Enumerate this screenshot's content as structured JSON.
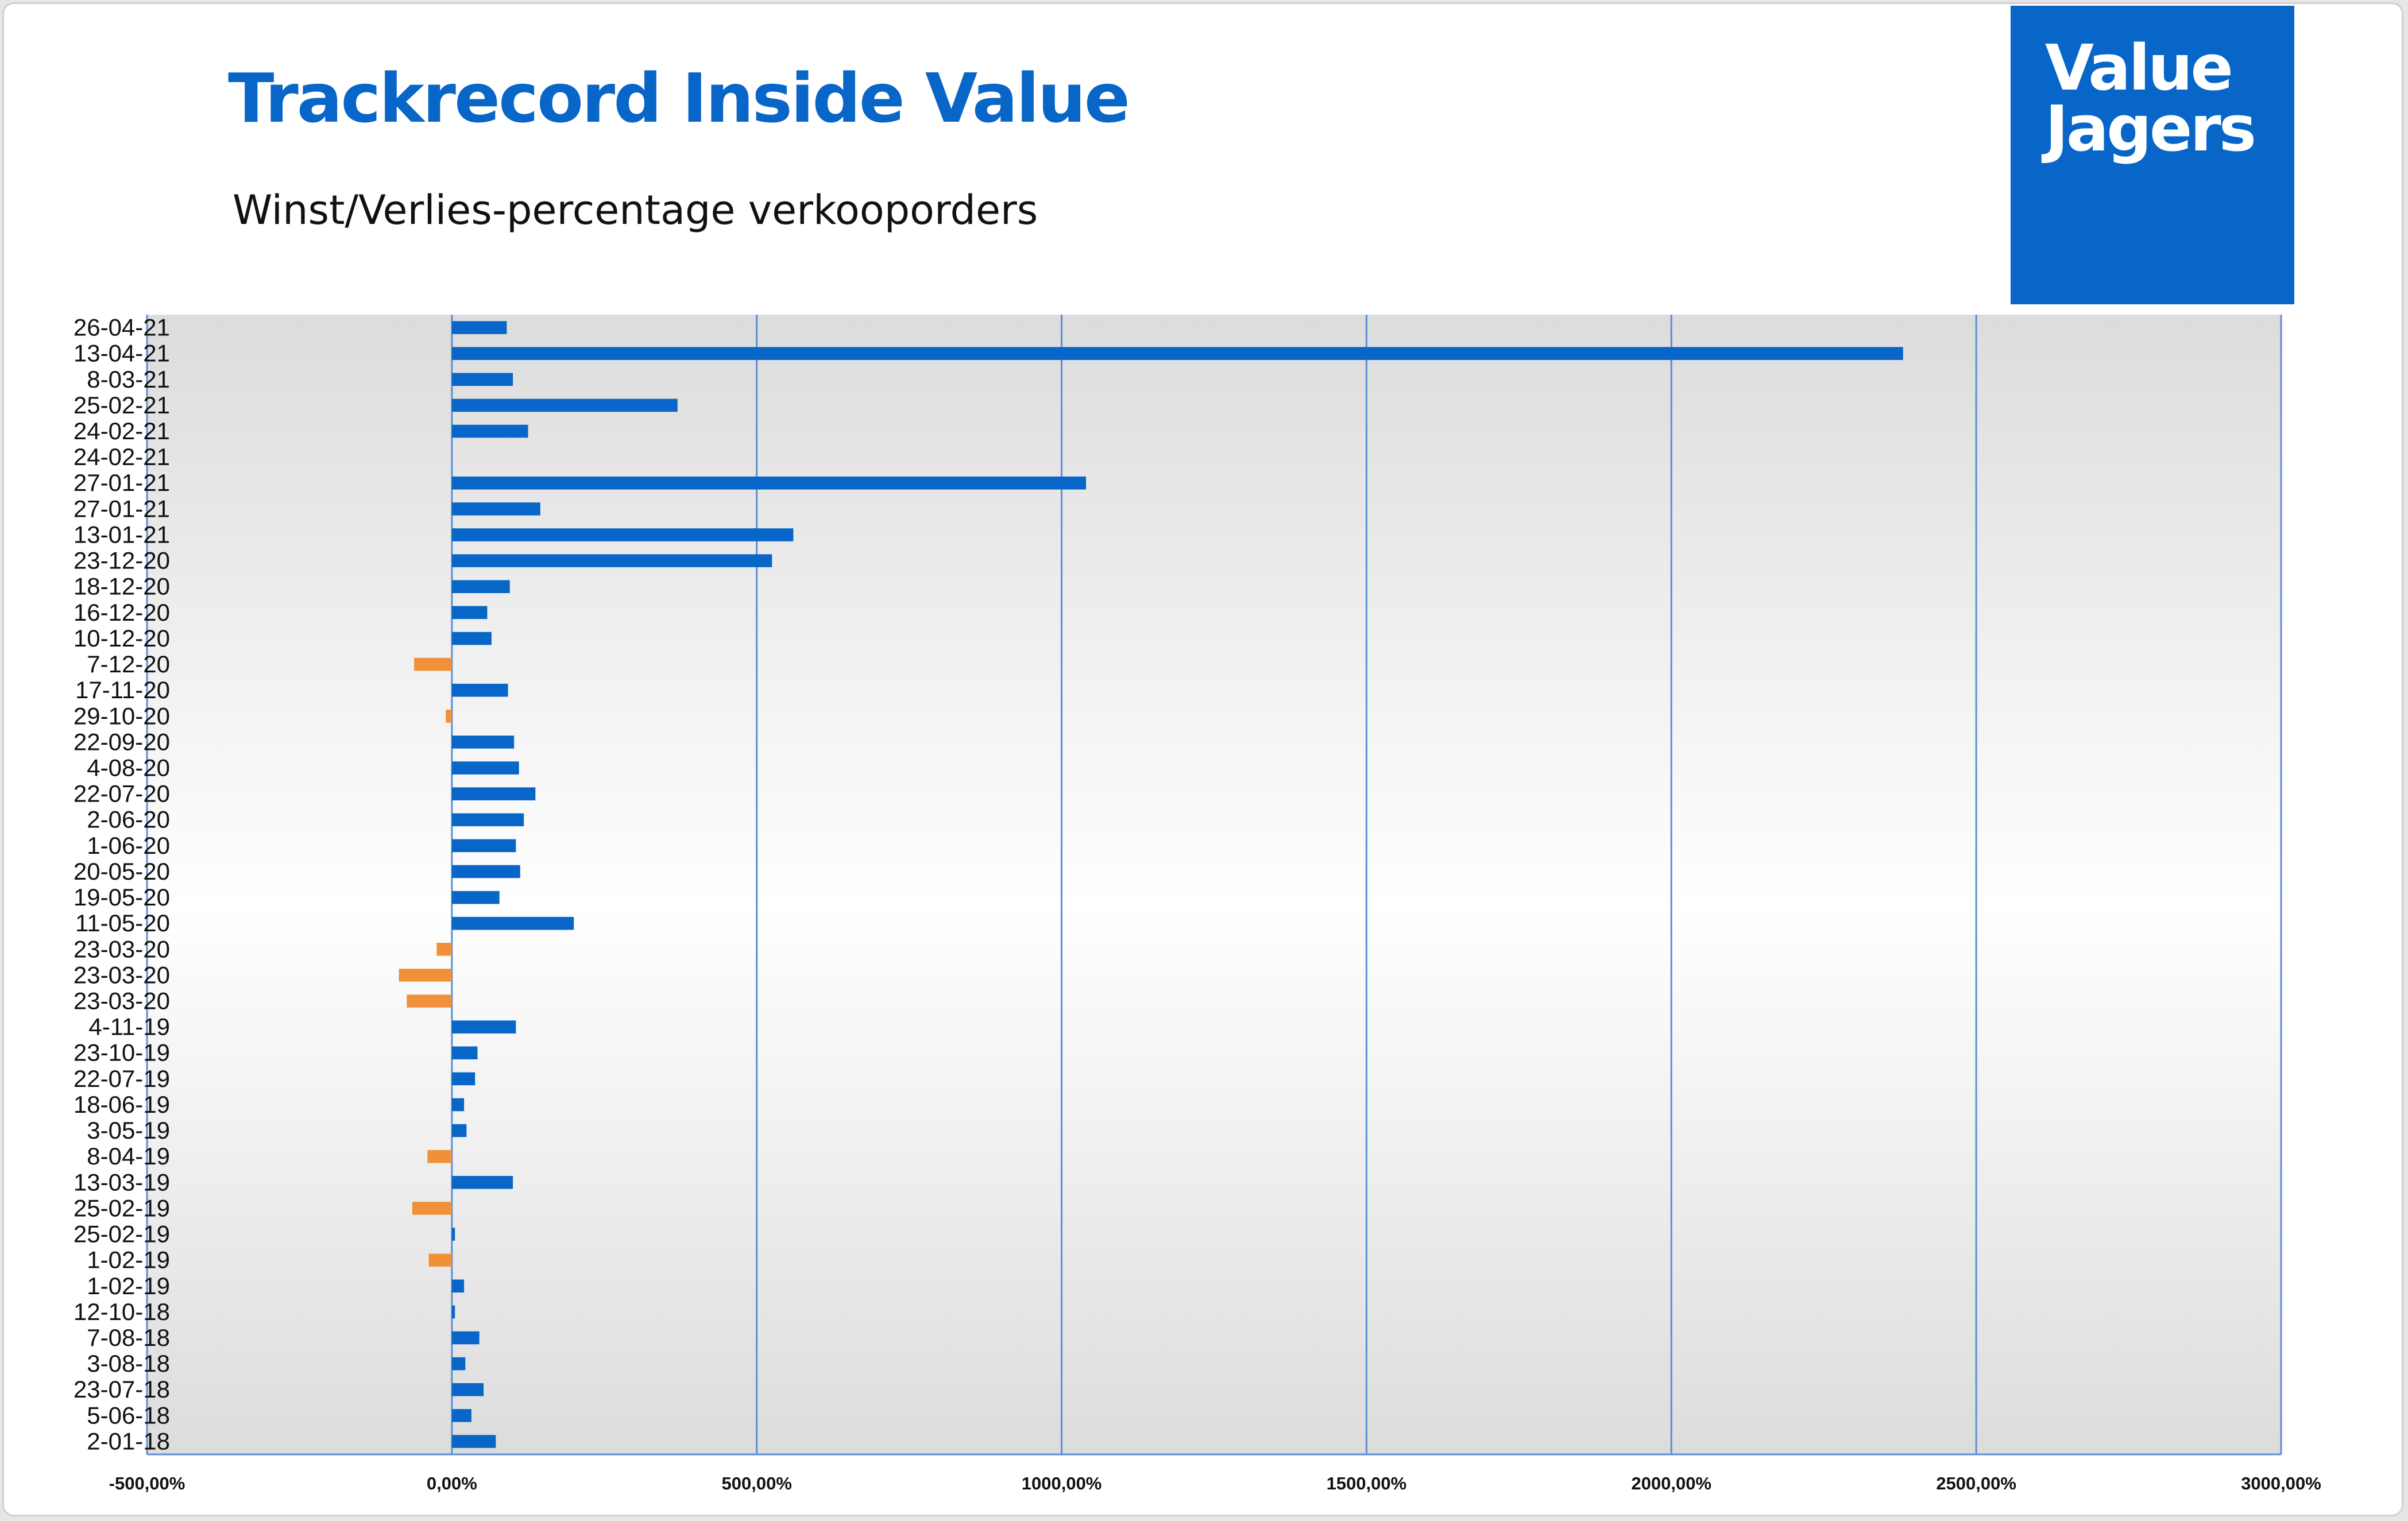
{
  "header": {
    "title": "Trackrecord Inside Value",
    "subtitle": "Winst/Verlies-percentage verkooporders"
  },
  "logo": {
    "line1": "Value",
    "line2": "Jagers"
  },
  "chart_data": {
    "type": "bar",
    "orientation": "horizontal",
    "categories": [
      "26-04-21",
      "13-04-21",
      "8-03-21",
      "25-02-21",
      "24-02-21",
      "24-02-21",
      "27-01-21",
      "27-01-21",
      "13-01-21",
      "23-12-20",
      "18-12-20",
      "16-12-20",
      "10-12-20",
      "7-12-20",
      "17-11-20",
      "29-10-20",
      "22-09-20",
      "4-08-20",
      "22-07-20",
      "2-06-20",
      "1-06-20",
      "20-05-20",
      "19-05-20",
      "11-05-20",
      "23-03-20",
      "23-03-20",
      "23-03-20",
      "4-11-19",
      "23-10-19",
      "22-07-19",
      "18-06-19",
      "3-05-19",
      "8-04-19",
      "13-03-19",
      "25-02-19",
      "25-02-19",
      "1-02-19",
      "1-02-19",
      "12-10-18",
      "7-08-18",
      "3-08-18",
      "23-07-18",
      "5-06-18",
      "2-01-18"
    ],
    "values": [
      90,
      2380,
      100,
      370,
      125,
      0,
      1040,
      145,
      560,
      525,
      95,
      58,
      65,
      -62,
      92,
      -10,
      102,
      110,
      137,
      118,
      105,
      112,
      78,
      200,
      -25,
      -87,
      -74,
      105,
      42,
      38,
      20,
      24,
      -40,
      100,
      -65,
      5,
      -38,
      20,
      5,
      45,
      22,
      52,
      32,
      72
    ],
    "xlim": [
      -500,
      3000
    ],
    "xticks": [
      -500,
      0,
      500,
      1000,
      1500,
      2000,
      2500,
      3000
    ],
    "xtick_labels": [
      "-500,00%",
      "0,00%",
      "500,00%",
      "1000,00%",
      "1500,00%",
      "2000,00%",
      "2500,00%",
      "3000,00%"
    ],
    "grid": "vertical",
    "legend": "none",
    "colors": {
      "positive": "#0766c7",
      "negative": "#f0913a",
      "grid": "#5b8fd6"
    }
  }
}
